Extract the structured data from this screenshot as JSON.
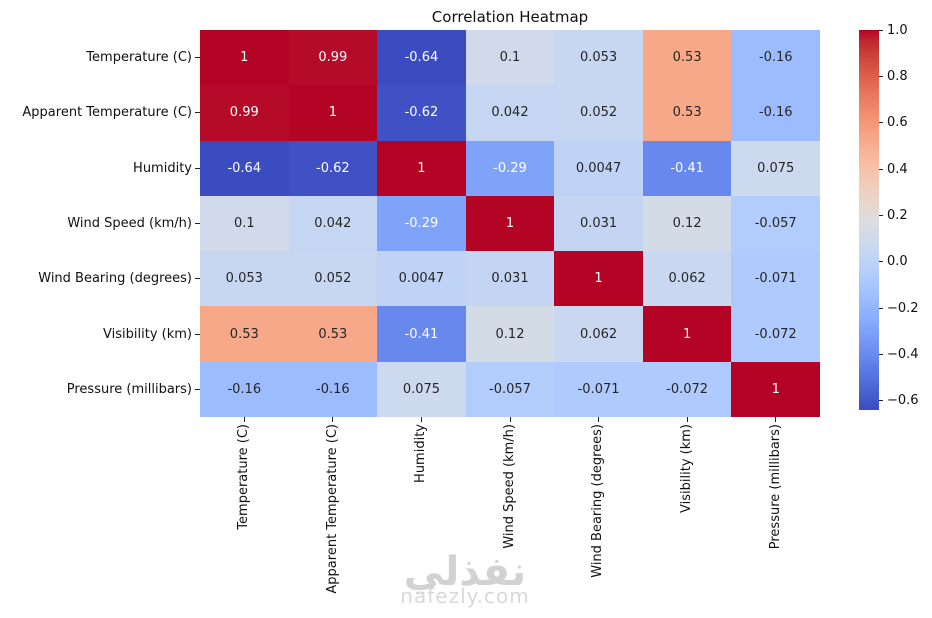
{
  "title": "Correlation Heatmap",
  "chart_data": {
    "type": "heatmap",
    "title": "Correlation Heatmap",
    "x_labels": [
      "Temperature (C)",
      "Apparent Temperature (C)",
      "Humidity",
      "Wind Speed (km/h)",
      "Wind Bearing (degrees)",
      "Visibility (km)",
      "Pressure (millibars)"
    ],
    "y_labels": [
      "Temperature (C)",
      "Apparent Temperature (C)",
      "Humidity",
      "Wind Speed (km/h)",
      "Wind Bearing (degrees)",
      "Visibility (km)",
      "Pressure (millibars)"
    ],
    "matrix": [
      [
        1,
        0.99,
        -0.64,
        0.1,
        0.053,
        0.53,
        -0.16
      ],
      [
        0.99,
        1,
        -0.62,
        0.042,
        0.052,
        0.53,
        -0.16
      ],
      [
        -0.64,
        -0.62,
        1,
        -0.29,
        0.0047,
        -0.41,
        0.075
      ],
      [
        0.1,
        0.042,
        -0.29,
        1,
        0.031,
        0.12,
        -0.057
      ],
      [
        0.053,
        0.052,
        0.0047,
        0.031,
        1,
        0.062,
        -0.071
      ],
      [
        0.53,
        0.53,
        -0.41,
        0.12,
        0.062,
        1,
        -0.072
      ],
      [
        -0.16,
        -0.16,
        0.075,
        -0.057,
        -0.071,
        -0.072,
        1
      ]
    ],
    "colormap": "coolwarm",
    "vmin": -0.64,
    "vmax": 1.0,
    "colorbar": {
      "tick_values": [
        1.0,
        0.8,
        0.6,
        0.4,
        0.2,
        0.0,
        -0.2,
        -0.4,
        -0.6
      ],
      "tick_labels": [
        "1.0",
        "0.8",
        "0.6",
        "0.4",
        "0.2",
        "0.0",
        "−0.2",
        "−0.4",
        "−0.6"
      ]
    },
    "colormap_anchors": [
      "#3b4cc0",
      "#445acc",
      "#4d68d7",
      "#5775e1",
      "#6282ea",
      "#6c8ef1",
      "#779af7",
      "#82a5fb",
      "#8db0fe",
      "#98b9ff",
      "#a3c2ff",
      "#aec9fd",
      "#b8d0f9",
      "#c2d5f4",
      "#ccd9ee",
      "#d5dbe6",
      "#dddddd",
      "#e5d8d1",
      "#ecd3c5",
      "#f1ccb9",
      "#f5c4ad",
      "#f7bba0",
      "#f7b194",
      "#f7a687",
      "#f49a7b",
      "#f18d6f",
      "#ec7f63",
      "#e57058",
      "#de604d",
      "#d55042",
      "#cb3e38",
      "#c0282f",
      "#b40426"
    ],
    "annotation_text_colors": {
      "light": "#ffffff",
      "dark": "#262626"
    },
    "luminance_threshold": 0.408,
    "legend_position": "right",
    "grid": false
  },
  "watermark": {
    "logo_text": "نفذلي",
    "site_text": "nafezly.com"
  }
}
